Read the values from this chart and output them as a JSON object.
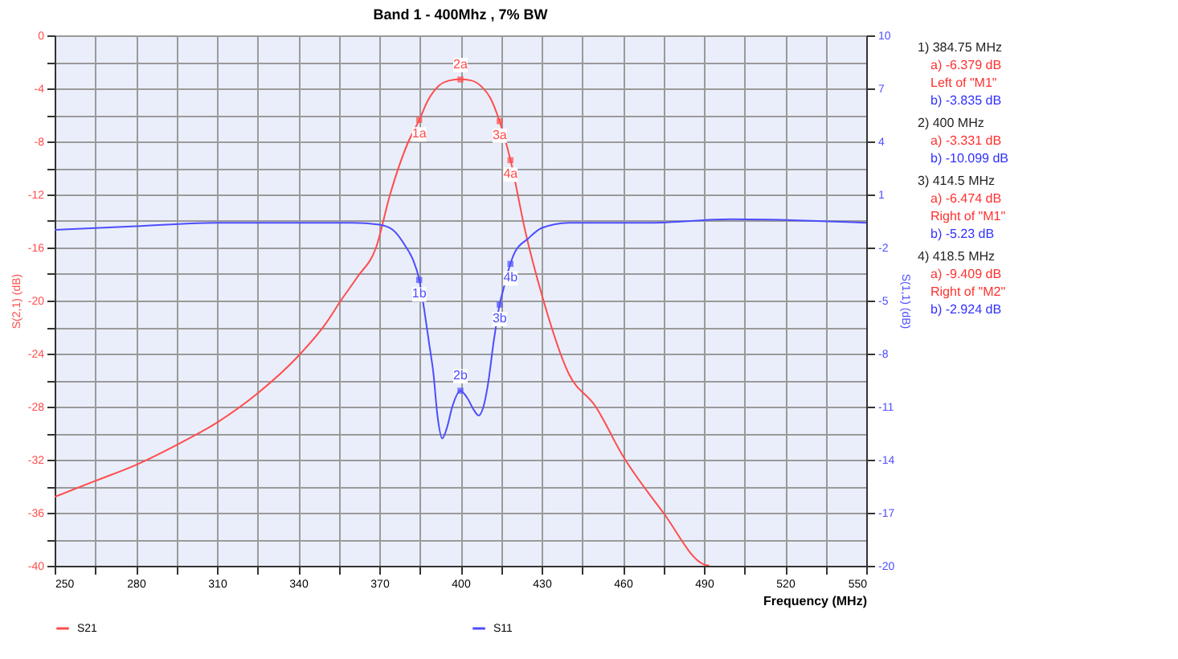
{
  "chart_data": {
    "type": "line",
    "title": "Band 1 - 400Mhz , 7% BW",
    "xlabel": "Frequency (MHz)",
    "ylabel": "S(2,1) (dB)",
    "y2label": "S(1,1) (dB)",
    "xlim": [
      250,
      550
    ],
    "xticks": [
      250,
      {
        "value": 265,
        "label": null
      },
      280,
      {
        "value": 295,
        "label": null
      },
      310,
      {
        "value": 325,
        "label": null
      },
      340,
      {
        "value": 355,
        "label": null
      },
      370,
      {
        "value": 385,
        "label": null
      },
      400,
      {
        "value": 415,
        "label": null
      },
      430,
      {
        "value": 445,
        "label": null
      },
      460,
      {
        "value": 475,
        "label": null
      },
      490,
      {
        "value": 505,
        "label": null
      },
      520,
      {
        "value": 535,
        "label": null
      },
      550
    ],
    "ylim": [
      -40,
      0
    ],
    "yticks": [
      -40,
      {
        "value": -38,
        "label": null
      },
      -36,
      {
        "value": -34,
        "label": null
      },
      -32,
      {
        "value": -30,
        "label": null
      },
      -28,
      {
        "value": -26,
        "label": null
      },
      -24,
      {
        "value": -22,
        "label": null
      },
      -20,
      {
        "value": -18,
        "label": null
      },
      -16,
      {
        "value": -14,
        "label": null
      },
      -12,
      {
        "value": -10,
        "label": null
      },
      -8,
      {
        "value": -6,
        "label": null
      },
      -4,
      {
        "value": -2,
        "label": null
      },
      0
    ],
    "y2lim": [
      -20,
      10
    ],
    "y2ticks": [
      -20,
      -17,
      -14,
      -11,
      -8,
      -5,
      -2,
      1,
      4,
      7,
      10
    ],
    "grid": true,
    "legend": "bottom",
    "line_style": "solid",
    "marker": "none",
    "series": [
      {
        "name": "S21",
        "color": "#ff4d4d",
        "x": [
          250,
          265,
          280,
          295,
          310,
          325,
          340,
          350,
          355.8,
          362,
          368.8,
          374,
          380.8,
          384.75,
          388,
          392,
          396,
          400,
          404,
          408,
          411,
          414.5,
          418.5,
          424,
          430,
          440,
          450,
          460,
          475,
          490,
          492
        ],
        "values": [
          -34.8,
          -33.6,
          -32.4,
          -30.9,
          -29.2,
          -27,
          -24.2,
          -21.8,
          -20,
          -18.2,
          -16,
          -12,
          -8,
          -6.4,
          -4.9,
          -3.8,
          -3.4,
          -3.3,
          -3.4,
          -3.9,
          -4.7,
          -6.5,
          -9.4,
          -14.8,
          -19.5,
          -25.5,
          -28,
          -31.7,
          -36,
          -39.9,
          -40
        ]
      },
      {
        "name": "S11",
        "color": "#4d4dff",
        "axis": "y2",
        "x": [
          250,
          280,
          310,
          340,
          360,
          370,
          375,
          380,
          382.5,
          384.75,
          386.7,
          388.5,
          390,
          391.5,
          393.3,
          395,
          397,
          400,
          402.5,
          405,
          406.7,
          408.5,
          410,
          412.5,
          414.5,
          416,
          418.5,
          420,
          425,
          430,
          440,
          470,
          500,
          550
        ],
        "values": [
          -1,
          -0.8,
          -0.6,
          -0.6,
          -0.6,
          -0.7,
          -1,
          -2,
          -2.7,
          -3.8,
          -5.6,
          -7.5,
          -9.1,
          -11.5,
          -12.8,
          -12.2,
          -11,
          -10.1,
          -10.5,
          -11.2,
          -11.5,
          -11,
          -9.9,
          -7.1,
          -5.2,
          -4.3,
          -2.9,
          -2.3,
          -1.5,
          -0.9,
          -0.6,
          -0.6,
          -0.4,
          -0.6
        ]
      },
      {
        "type": "scatter",
        "name": "1a",
        "marker": "square",
        "color": "#ff4d4d",
        "x": [
          384.75
        ],
        "values": [
          -6.379
        ]
      },
      {
        "type": "scatter",
        "name": "2a",
        "marker": "square",
        "color": "#ff4d4d",
        "x": [
          400
        ],
        "values": [
          -3.331
        ]
      },
      {
        "type": "scatter",
        "name": "3a",
        "marker": "square",
        "color": "#ff4d4d",
        "x": [
          414.5
        ],
        "values": [
          -6.474
        ]
      },
      {
        "type": "scatter",
        "name": "4a",
        "marker": "square",
        "color": "#ff4d4d",
        "x": [
          418.5
        ],
        "values": [
          -9.409
        ]
      },
      {
        "type": "scatter",
        "name": "1b",
        "marker": "square",
        "color": "#4d4dff",
        "axis": "y2",
        "x": [
          384.75
        ],
        "values": [
          -3.835
        ]
      },
      {
        "type": "scatter",
        "name": "2b",
        "marker": "square",
        "color": "#4d4dff",
        "axis": "y2",
        "x": [
          400
        ],
        "values": [
          -10.099
        ]
      },
      {
        "type": "scatter",
        "name": "3b",
        "marker": "square",
        "color": "#4d4dff",
        "axis": "y2",
        "x": [
          414.5
        ],
        "values": [
          -5.23
        ]
      },
      {
        "type": "scatter",
        "name": "4b",
        "marker": "square",
        "color": "#4d4dff",
        "axis": "y2",
        "x": [
          418.5
        ],
        "values": [
          -2.924
        ]
      }
    ],
    "annotations": [
      "1) 384.75 MHz",
      "a) -6.379 dB",
      "Left of \"M1\"",
      "b) -3.835 dB",
      "2) 400 MHz",
      "a) -3.331 dB",
      "b) -10.099 dB",
      "3) 414.5 MHz",
      "a) -6.474 dB",
      "Right of \"M1\"",
      "b) -5.23 dB",
      "4) 418.5 MHz",
      "a) -9.409 dB",
      "Right of \"M2\"",
      "b) -2.924 dB"
    ]
  }
}
